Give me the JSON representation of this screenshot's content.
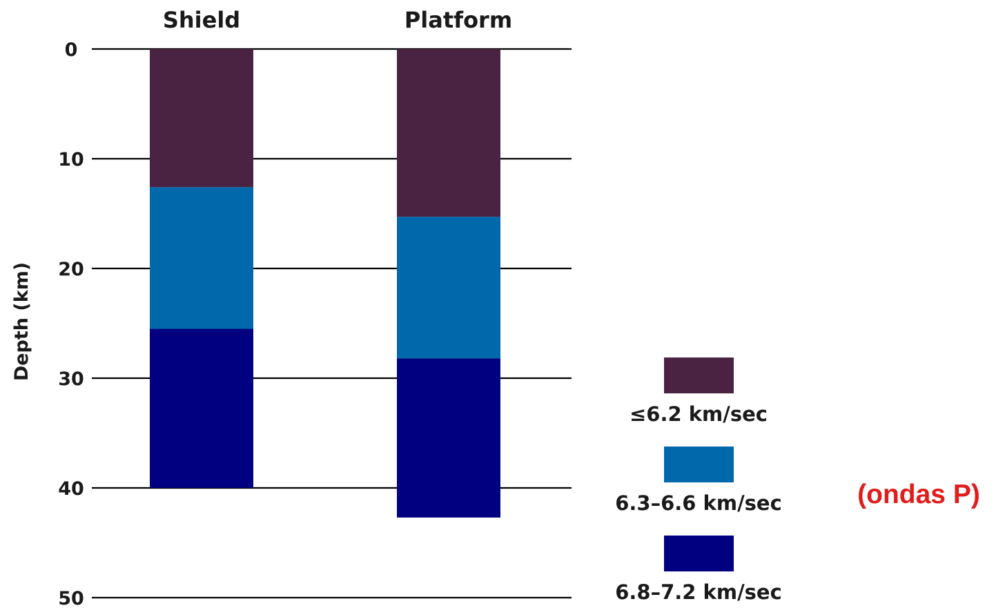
{
  "chart_data": {
    "type": "bar",
    "stacked": true,
    "orientation": "vertical-depth",
    "categories": [
      "Shield",
      "Platform"
    ],
    "ylabel": "Depth (km)",
    "ylim": [
      0,
      50
    ],
    "y_inverted": true,
    "yticks": [
      0,
      10,
      20,
      30,
      40,
      50
    ],
    "grid": true,
    "legend_position": "bottom-right",
    "series": [
      {
        "name": "≤6.2 km/sec",
        "color": "#4a2342",
        "layers": [
          [
            0,
            12.6
          ],
          [
            0,
            15.3
          ]
        ]
      },
      {
        "name": "6.3–6.6 km/sec",
        "color": "#0068ab",
        "layers": [
          [
            12.6,
            25.5
          ],
          [
            15.3,
            28.2
          ]
        ]
      },
      {
        "name": "6.8–7.2 km/sec",
        "color": "#010080",
        "layers": [
          [
            25.5,
            40.0
          ],
          [
            28.2,
            42.7
          ]
        ]
      }
    ],
    "annotation": {
      "text": "(ondas P)",
      "color": "#e21b1b"
    }
  }
}
